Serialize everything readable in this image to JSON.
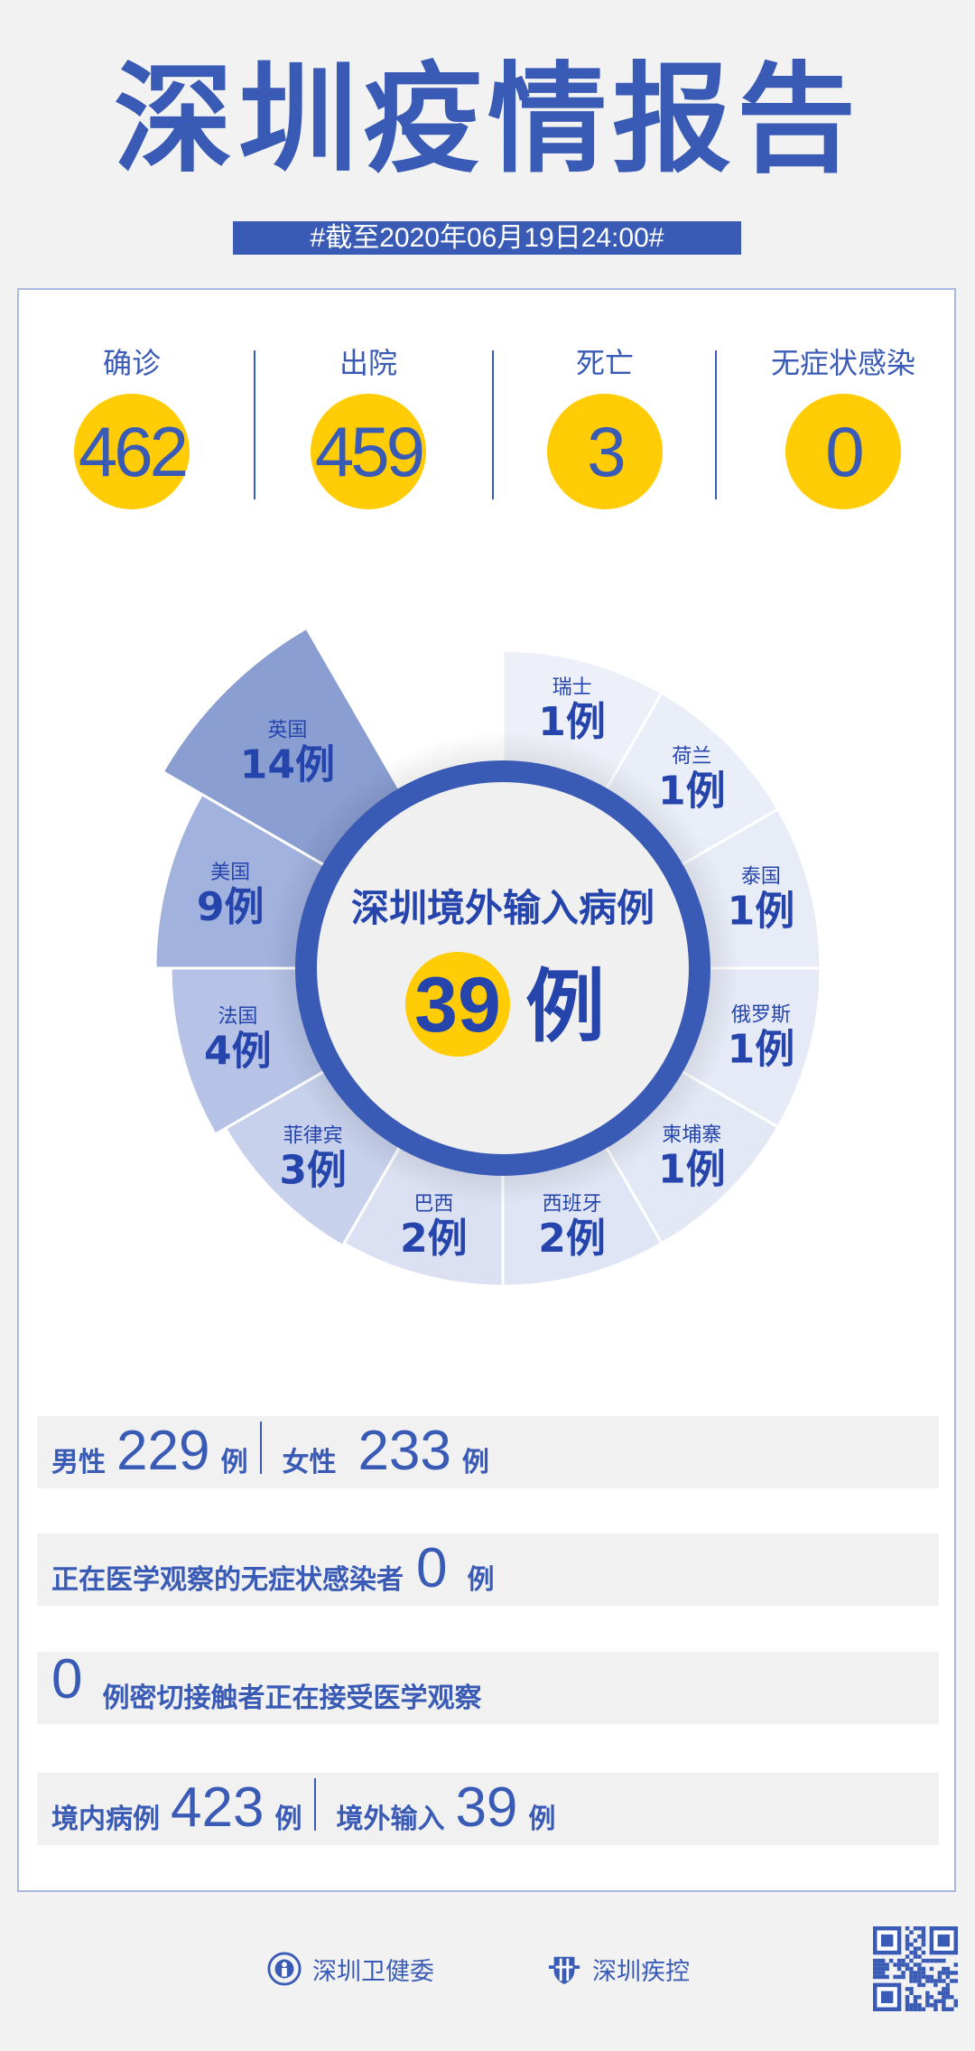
{
  "header": {
    "title": "深圳疫情报告",
    "date": "#截至2020年06月19日24:00#"
  },
  "stats": [
    {
      "label": "确诊",
      "value": "462"
    },
    {
      "label": "出院",
      "value": "459"
    },
    {
      "label": "死亡",
      "value": "3"
    },
    {
      "label": "无症状感染",
      "value": "0"
    }
  ],
  "imported": {
    "title": "深圳境外输入病例",
    "total": "39",
    "unit": "例",
    "countries": [
      {
        "name": "瑞士",
        "count": 1,
        "label": "1例",
        "color": "#edf0f8"
      },
      {
        "name": "荷兰",
        "count": 1,
        "label": "1例",
        "color": "#eaeef8"
      },
      {
        "name": "泰国",
        "count": 1,
        "label": "1例",
        "color": "#e8ecf7"
      },
      {
        "name": "俄罗斯",
        "count": 1,
        "label": "1例",
        "color": "#e6eaf6"
      },
      {
        "name": "柬埔寨",
        "count": 1,
        "label": "1例",
        "color": "#e3e8f5"
      },
      {
        "name": "西班牙",
        "count": 2,
        "label": "2例",
        "color": "#dfe5f4"
      },
      {
        "name": "巴西",
        "count": 2,
        "label": "2例",
        "color": "#dbe1f2"
      },
      {
        "name": "菲律宾",
        "count": 3,
        "label": "3例",
        "color": "#c8d1ec"
      },
      {
        "name": "法国",
        "count": 4,
        "label": "4例",
        "color": "#b6c3e6"
      },
      {
        "name": "美国",
        "count": 9,
        "label": "9例",
        "color": "#a2b2de"
      },
      {
        "name": "英国",
        "count": 14,
        "label": "14例",
        "color": "#8a9ed2"
      }
    ],
    "center_fill": "#f0f0f0",
    "ring_color": "#3a5bb5",
    "highlight": "#ffcc05"
  },
  "rows": {
    "gender": {
      "male_label": "男性",
      "male": "229",
      "female_label": "女性",
      "female": "233",
      "unit": "例"
    },
    "asymptomatic": {
      "label": "正在医学观察的无症状感染者",
      "value": "0",
      "unit": "例"
    },
    "contacts": {
      "value": "0",
      "label": "例密切接触者正在接受医学观察"
    },
    "origin": {
      "local_label": "境内病例",
      "local": "423",
      "imported_label": "境外输入",
      "imported": "39",
      "unit": "例"
    }
  },
  "footer": {
    "org1": "深圳卫健委",
    "org2": "深圳疾控",
    "qr_icon": "qr-code-icon"
  },
  "colors": {
    "primary": "#3a5bb5",
    "accent": "#ffcc05",
    "background": "#f2f2f2"
  }
}
